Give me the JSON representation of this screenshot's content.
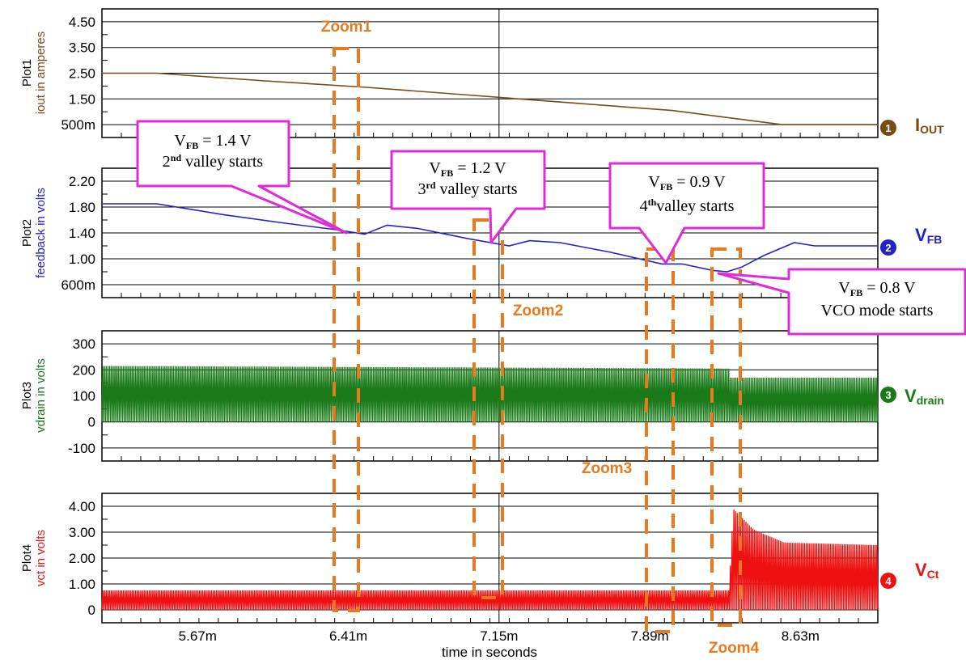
{
  "colors": {
    "plot1": "#7a4a17",
    "plot2": "#2222cc",
    "plot3": "#1a7a1a",
    "plot4": "#ee1111",
    "zoom": "#e8791f",
    "callout_border": "#e02ad8",
    "grid": "#000000"
  },
  "chart_data": {
    "type": "line",
    "x_axis": {
      "label": "time in seconds",
      "ticks": [
        "5.67m",
        "6.41m",
        "7.15m",
        "7.89m",
        "8.63m"
      ],
      "tick_values": [
        5.67,
        6.41,
        7.15,
        7.89,
        8.63
      ],
      "xlim": [
        5.2,
        9.01
      ]
    },
    "plots": [
      {
        "id": "Plot1",
        "ylabel_title": "Plot1",
        "ylabel_unit": "iout in amperes",
        "y_ticks": [
          "4.50",
          "3.50",
          "2.50",
          "1.50",
          "500m"
        ],
        "y_tick_values": [
          4.5,
          3.5,
          2.5,
          1.5,
          0.5
        ],
        "ylim": [
          0.0,
          5.0
        ],
        "marker": "1",
        "signal": "I",
        "signal_sub": "OUT",
        "series": [
          {
            "x": [
              5.2,
              5.47,
              6.0,
              6.5,
              7.0,
              7.5,
              8.0,
              8.54,
              9.01
            ],
            "y": [
              2.5,
              2.5,
              2.2,
              1.95,
              1.65,
              1.35,
              1.05,
              0.5,
              0.5
            ]
          }
        ]
      },
      {
        "id": "Plot2",
        "ylabel_title": "Plot2",
        "ylabel_unit": "feedback in volts",
        "y_ticks": [
          "2.20",
          "1.80",
          "1.40",
          "1.00",
          "600m"
        ],
        "y_tick_values": [
          2.2,
          1.8,
          1.4,
          1.0,
          0.6
        ],
        "ylim": [
          0.4,
          2.4
        ],
        "marker": "2",
        "signal": "V",
        "signal_sub": "FB",
        "series": [
          {
            "x": [
              5.2,
              5.47,
              5.8,
              6.1,
              6.35,
              6.49,
              6.6,
              6.75,
              7.0,
              7.2,
              7.3,
              7.45,
              7.7,
              7.95,
              8.05,
              8.2,
              8.27,
              8.34,
              8.45,
              8.6,
              8.7,
              9.01
            ],
            "y": [
              1.85,
              1.85,
              1.68,
              1.55,
              1.45,
              1.38,
              1.52,
              1.47,
              1.31,
              1.2,
              1.28,
              1.25,
              1.1,
              0.92,
              0.92,
              0.82,
              0.8,
              0.87,
              1.05,
              1.25,
              1.2,
              1.2
            ]
          }
        ]
      },
      {
        "id": "Plot3",
        "ylabel_title": "Plot3",
        "ylabel_unit": "vdrain in volts",
        "y_ticks": [
          "300",
          "200",
          "100",
          "0",
          "-100"
        ],
        "y_tick_values": [
          300,
          200,
          100,
          0,
          -100
        ],
        "ylim": [
          -150,
          350
        ],
        "marker": "3",
        "signal": "V",
        "signal_sub": "drain",
        "series": [
          {
            "x": [
              5.2,
              8.28,
              8.28,
              9.01
            ],
            "y_min": [
              0,
              0,
              0,
              0
            ],
            "y_max": [
              215,
              205,
              170,
              170
            ]
          }
        ]
      },
      {
        "id": "Plot4",
        "ylabel_title": "Plot4",
        "ylabel_unit": "vct in volts",
        "y_ticks": [
          "4.00",
          "3.00",
          "2.00",
          "1.00",
          "0"
        ],
        "y_tick_values": [
          4.0,
          3.0,
          2.0,
          1.0,
          0.0
        ],
        "ylim": [
          -0.5,
          4.5
        ],
        "marker": "4",
        "signal": "V",
        "signal_sub": "Ct",
        "series": [
          {
            "x": [
              5.2,
              8.28,
              8.3,
              8.4,
              8.55,
              9.01
            ],
            "y_min": [
              0.0,
              0.0,
              0.0,
              0.0,
              0.0,
              0.0
            ],
            "y_max": [
              0.75,
              0.75,
              3.9,
              3.1,
              2.6,
              2.5
            ]
          }
        ]
      }
    ]
  },
  "annotations": {
    "callouts": [
      {
        "line1_v": "V",
        "line1_sub": "FB",
        "line1_rest": " = 1.4 V",
        "line2_num": "2",
        "line2_sup": "nd",
        "line2_rest": " valley starts"
      },
      {
        "line1_v": "V",
        "line1_sub": "FB",
        "line1_rest": " = 1.2 V",
        "line2_num": "3",
        "line2_sup": "rd",
        "line2_rest": " valley starts"
      },
      {
        "line1_v": "V",
        "line1_sub": "FB",
        "line1_rest": " = 0.9 V",
        "line2_num": "4",
        "line2_sup": "th",
        "line2_rest": "valley starts"
      },
      {
        "line1_v": "V",
        "line1_sub": "FB",
        "line1_rest": " = 0.8 V",
        "line2_num": "",
        "line2_sup": "",
        "line2_rest": "VCO mode starts"
      }
    ],
    "zooms": [
      "Zoom1",
      "Zoom2",
      "Zoom3",
      "Zoom4"
    ]
  }
}
